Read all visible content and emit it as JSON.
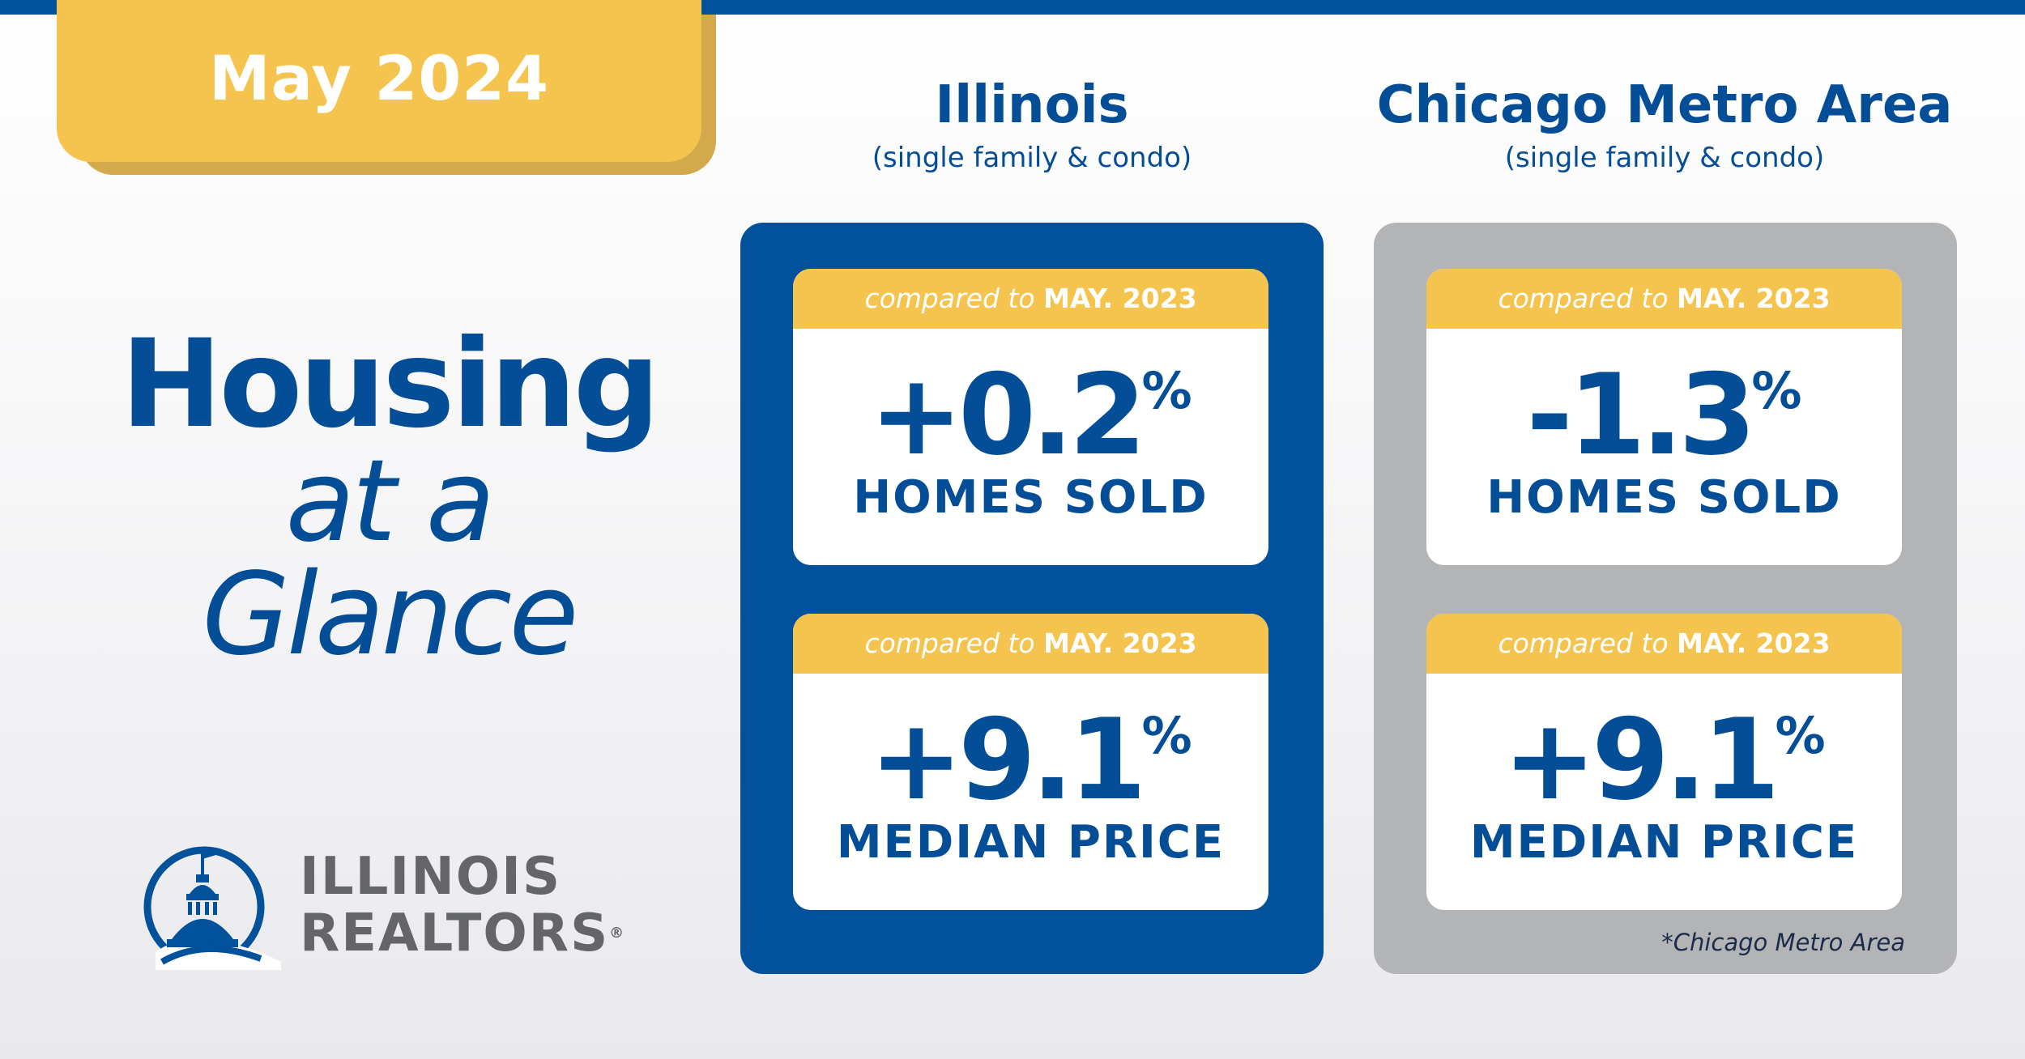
{
  "header": {
    "month": "May 2024"
  },
  "headline": {
    "line1": "Housing",
    "line2": "at a",
    "line3": "Glance"
  },
  "logo": {
    "line1": "ILLINOIS",
    "line2": "REALTORS",
    "reg": "®",
    "icon": "capitol-dome-icon"
  },
  "columns": [
    {
      "title": "Illinois",
      "subtitle": "(single family & condo)",
      "cards": [
        {
          "compared_prefix": "compared to",
          "compared_date": "MAY. 2023",
          "value": "+0.2",
          "unit": "%",
          "label": "HOMES SOLD"
        },
        {
          "compared_prefix": "compared to",
          "compared_date": "MAY. 2023",
          "value": "+9.1",
          "unit": "%",
          "label": "MEDIAN PRICE"
        }
      ]
    },
    {
      "title": "Chicago Metro Area",
      "subtitle": "(single family & condo)",
      "cards": [
        {
          "compared_prefix": "compared to",
          "compared_date": "MAY. 2023",
          "value": "-1.3",
          "unit": "%",
          "label": "HOMES SOLD"
        },
        {
          "compared_prefix": "compared to",
          "compared_date": "MAY. 2023",
          "value": "+9.1",
          "unit": "%",
          "label": "MEDIAN PRICE"
        }
      ],
      "footnote": "*Chicago Metro Area"
    }
  ],
  "colors": {
    "brand_blue": "#02519b",
    "text_blue": "#044d97",
    "gold": "#f4c44e",
    "gray_panel": "#b3b4b6",
    "logo_gray": "#646569"
  }
}
